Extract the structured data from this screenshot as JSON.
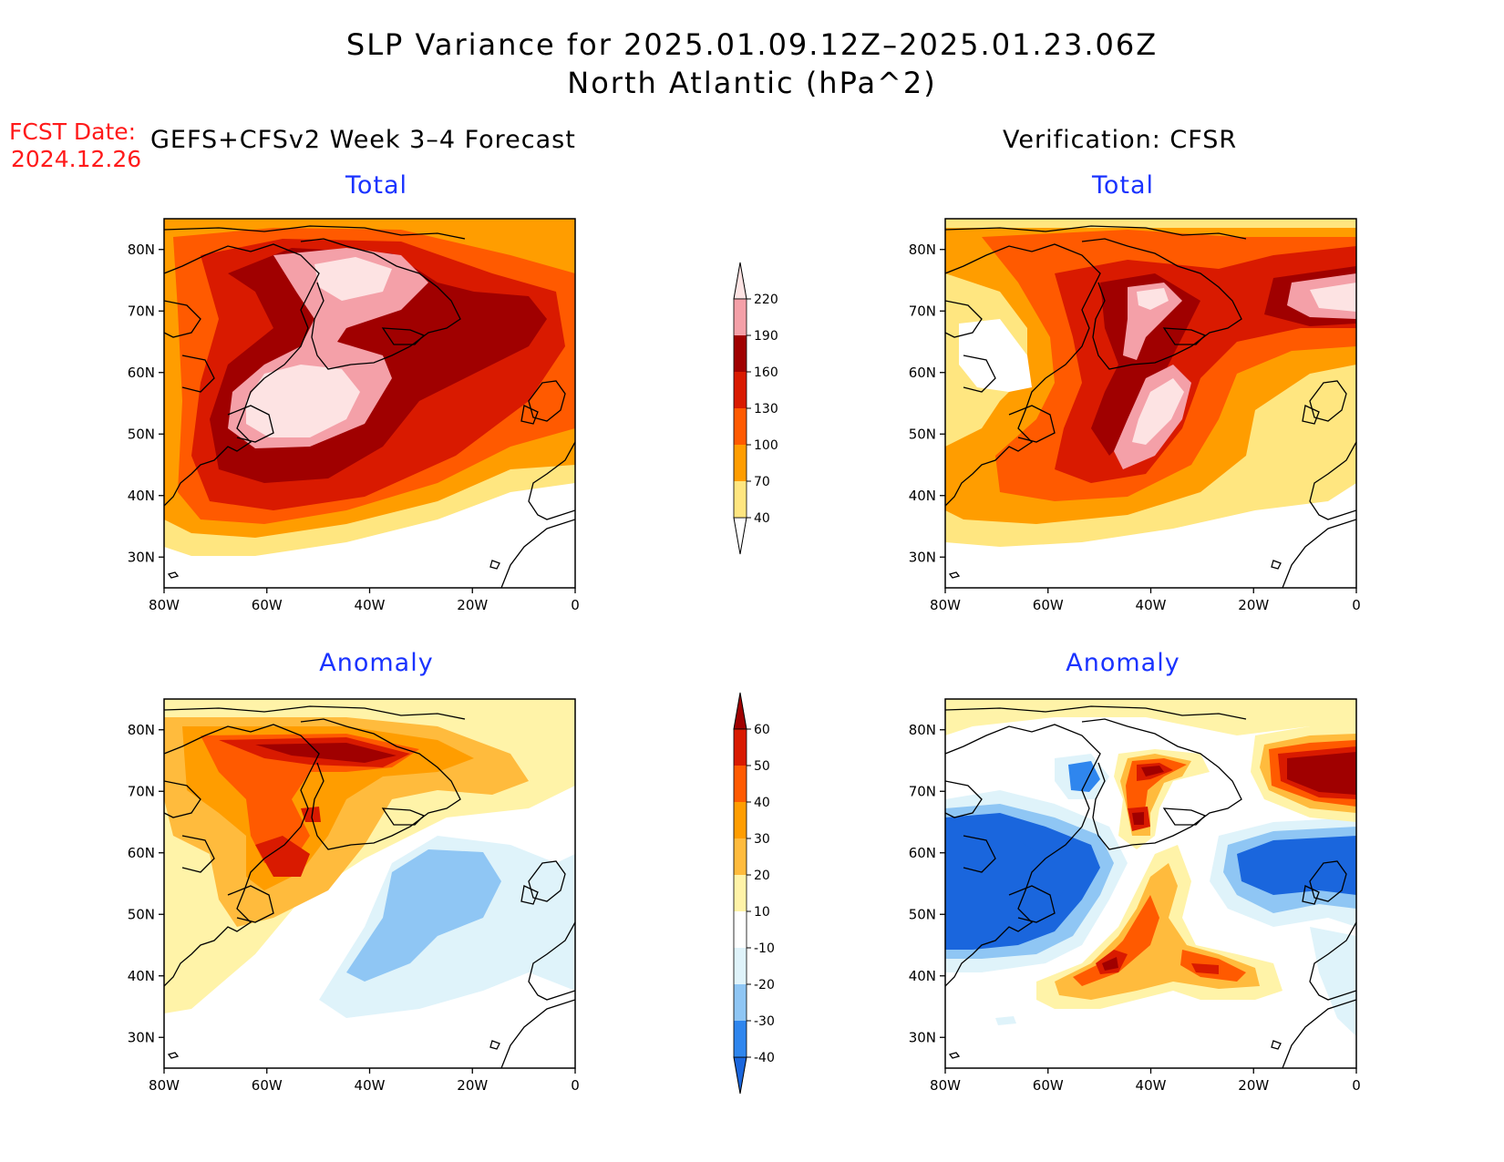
{
  "title": {
    "line1": "SLP Variance for 2025.01.09.12Z–2025.01.23.06Z",
    "line2": "North Atlantic (hPa^2)"
  },
  "fcst_date": {
    "label": "FCST Date:",
    "value": "2024.12.26"
  },
  "left_header": "GEFS+CFSv2 Week 3–4 Forecast",
  "right_header": "Verification: CFSR",
  "panels": {
    "forecast_total": "Total",
    "forecast_anomaly": "Anomaly",
    "verif_total": "Total",
    "verif_anomaly": "Anomaly"
  },
  "axes": {
    "lon_ticks": [
      "80W",
      "60W",
      "40W",
      "20W",
      "0"
    ],
    "lat_ticks": [
      "30N",
      "40N",
      "50N",
      "60N",
      "70N",
      "80N"
    ],
    "lon_range": [
      -80,
      0
    ],
    "lat_range": [
      25,
      85
    ]
  },
  "colorbars": {
    "total": {
      "levels": [
        "40",
        "70",
        "100",
        "130",
        "160",
        "190",
        "220"
      ],
      "colors": [
        "#ffffff",
        "#ffe680",
        "#ff9d00",
        "#ff5a00",
        "#d91a00",
        "#a00000",
        "#f4a0a8",
        "#fde3e3"
      ]
    },
    "anomaly": {
      "levels": [
        "-40",
        "-30",
        "-20",
        "-10",
        "10",
        "20",
        "30",
        "40",
        "50",
        "60"
      ],
      "colors": [
        "#1a66dd",
        "#2f86ee",
        "#8fc6f4",
        "#dff3fa",
        "#ffffff",
        "#fff3a8",
        "#ffbb3d",
        "#ff9d00",
        "#ff5a00",
        "#d91a00",
        "#a00000"
      ]
    }
  }
}
